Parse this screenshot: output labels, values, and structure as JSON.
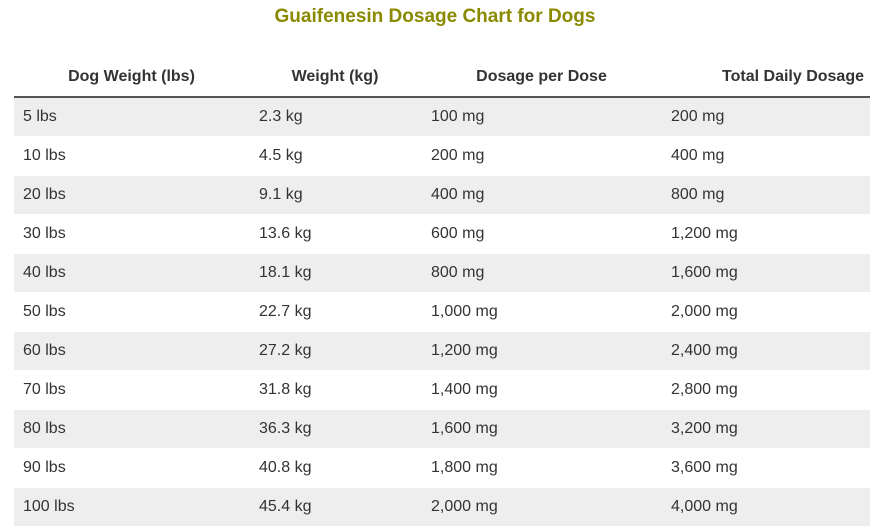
{
  "title": "Guaifenesin Dosage Chart for Dogs",
  "table": {
    "headers": [
      "Dog Weight (lbs)",
      "Weight (kg)",
      "Dosage per Dose",
      "Total Daily Dosage"
    ],
    "rows": [
      [
        "5 lbs",
        "2.3 kg",
        "100 mg",
        "200 mg"
      ],
      [
        "10 lbs",
        "4.5 kg",
        "200 mg",
        "400 mg"
      ],
      [
        "20 lbs",
        "9.1 kg",
        "400 mg",
        "800 mg"
      ],
      [
        "30 lbs",
        "13.6 kg",
        "600 mg",
        "1,200 mg"
      ],
      [
        "40 lbs",
        "18.1 kg",
        "800 mg",
        "1,600 mg"
      ],
      [
        "50 lbs",
        "22.7 kg",
        "1,000 mg",
        "2,000 mg"
      ],
      [
        "60 lbs",
        "27.2 kg",
        "1,200 mg",
        "2,400 mg"
      ],
      [
        "70 lbs",
        "31.8 kg",
        "1,400 mg",
        "2,800 mg"
      ],
      [
        "80 lbs",
        "36.3 kg",
        "1,600 mg",
        "3,200 mg"
      ],
      [
        "90 lbs",
        "40.8 kg",
        "1,800 mg",
        "3,600 mg"
      ],
      [
        "100 lbs",
        "45.4 kg",
        "2,000 mg",
        "4,000 mg"
      ]
    ]
  },
  "colors": {
    "title": "#8a8a00",
    "stripe": "#eeeeee",
    "text": "#333333",
    "header_rule": "#555555"
  }
}
